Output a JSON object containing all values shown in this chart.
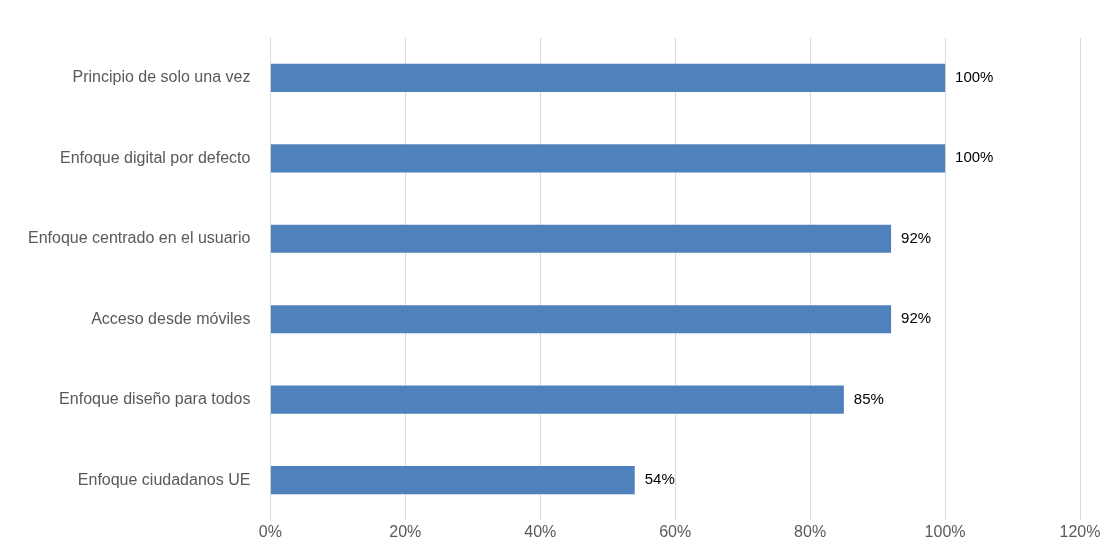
{
  "chart_data": {
    "type": "bar",
    "orientation": "horizontal",
    "categories": [
      "Principio de solo una vez",
      "Enfoque digital por defecto",
      "Enfoque centrado en el usuario",
      "Acceso desde móviles",
      "Enfoque diseño para todos",
      "Enfoque ciudadanos UE"
    ],
    "values": [
      100,
      100,
      92,
      92,
      85,
      54
    ],
    "color": "#4f81bd",
    "value_labels": [
      "100%",
      "100%",
      "92%",
      "92%",
      "85%",
      "54%"
    ],
    "xlim": [
      0,
      120
    ],
    "xticks": [
      {
        "value": 0,
        "label": "0%"
      },
      {
        "value": 20,
        "label": "20%"
      },
      {
        "value": 40,
        "label": "40%"
      },
      {
        "value": 60,
        "label": "60%"
      },
      {
        "value": 80,
        "label": "80%"
      },
      {
        "value": 100,
        "label": "100%"
      },
      {
        "value": 120,
        "label": "120%"
      }
    ],
    "grid": "x",
    "legend": false
  }
}
